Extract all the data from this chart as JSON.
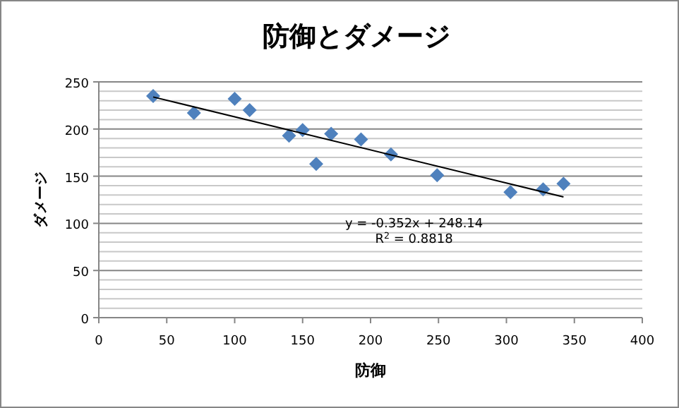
{
  "chart_data": {
    "type": "scatter",
    "title": "防御とダメージ",
    "xlabel": "防御",
    "ylabel": "ダメージ",
    "xlim": [
      0,
      400
    ],
    "xticks": [
      0,
      50,
      100,
      150,
      200,
      250,
      300,
      350,
      400
    ],
    "ylim": [
      0,
      250
    ],
    "yticks": [
      0,
      50,
      100,
      150,
      200,
      250
    ],
    "grid": "y",
    "marker": "diamond",
    "series": [
      {
        "color": "#4f81bd",
        "x": [
          40,
          70,
          100,
          111,
          140,
          150,
          160,
          171,
          193,
          215,
          249,
          303,
          327,
          342
        ],
        "values": [
          235,
          217,
          232,
          220,
          193,
          199,
          163,
          195,
          189,
          173,
          151,
          133,
          136,
          142
        ]
      },
      {
        "type": "line",
        "marker": "none",
        "color": "#000000",
        "x": [
          40,
          342
        ],
        "values": [
          234,
          128
        ]
      }
    ],
    "annotations": [
      "y = -0.352x + 248.14",
      "R$^{2}$ = 0.8818"
    ]
  }
}
